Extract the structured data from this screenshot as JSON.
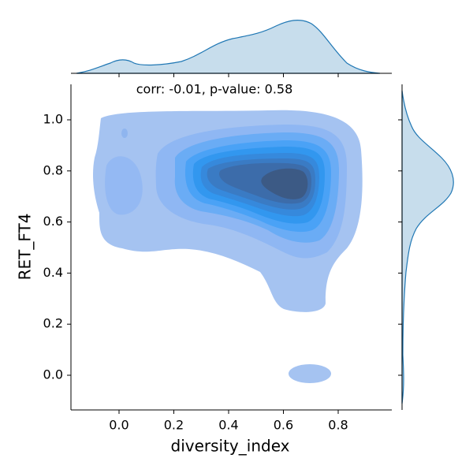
{
  "chart_data": {
    "type": "kde2d",
    "annotation": "corr: -0.01, p-value: 0.58",
    "xlabel": "diversity_index",
    "ylabel": "RET_FT4",
    "xlim": [
      -0.1755,
      0.9957
    ],
    "ylim": [
      -0.1358,
      1.1389
    ],
    "xticks": [
      {
        "value": 0,
        "label": "0.0"
      },
      {
        "value": 0.2,
        "label": "0.2"
      },
      {
        "value": 0.4,
        "label": "0.4"
      },
      {
        "value": 0.6,
        "label": "0.6"
      },
      {
        "value": 0.8,
        "label": "0.8"
      }
    ],
    "yticks": [
      {
        "value": 0,
        "label": "0.0"
      },
      {
        "value": 0.2,
        "label": "0.2"
      },
      {
        "value": 0.4,
        "label": "0.4"
      },
      {
        "value": 0.6,
        "label": "0.6"
      },
      {
        "value": 0.8,
        "label": "0.8"
      },
      {
        "value": 1,
        "label": "1.0"
      }
    ],
    "color": "#1f77b4"
  }
}
